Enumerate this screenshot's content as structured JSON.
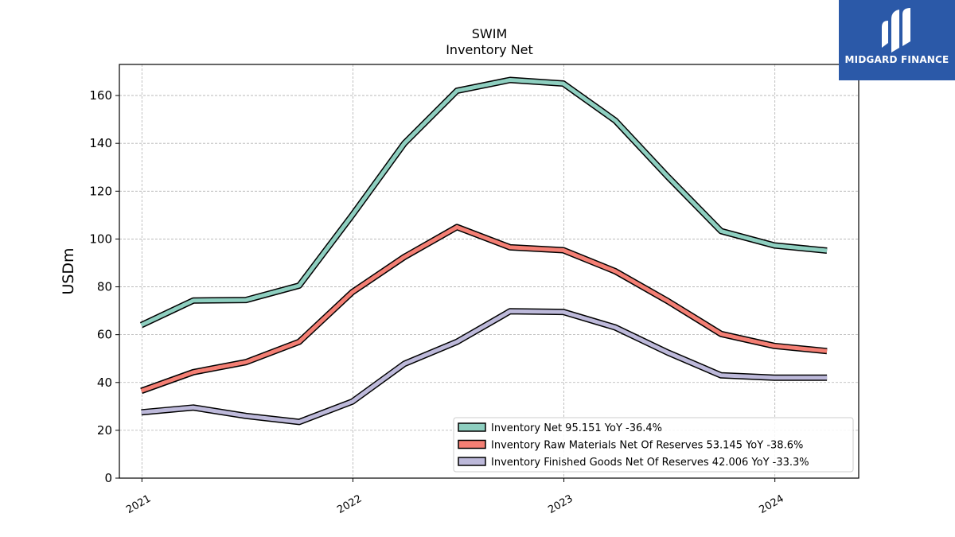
{
  "logo": {
    "text": "MIDGARD FINANCE",
    "bg_color": "#2b59a8"
  },
  "chart_data": {
    "type": "line",
    "title": "SWIM",
    "subtitle": "Inventory Net",
    "ylabel": "USDm",
    "xlabel": "",
    "ylim": [
      0,
      173
    ],
    "yticks": [
      0,
      20,
      40,
      60,
      80,
      100,
      120,
      140,
      160
    ],
    "xlim": [
      "2020-11-23",
      "2024-05-25"
    ],
    "xticks": [
      {
        "date": "2021-01-01",
        "label": "2021"
      },
      {
        "date": "2022-01-01",
        "label": "2022"
      },
      {
        "date": "2023-01-01",
        "label": "2023"
      },
      {
        "date": "2024-01-01",
        "label": "2024"
      }
    ],
    "grid": true,
    "legend_position": "lower-right",
    "x": [
      "2020-12-31",
      "2021-03-31",
      "2021-06-30",
      "2021-09-30",
      "2021-12-31",
      "2022-03-31",
      "2022-06-30",
      "2022-09-30",
      "2022-12-31",
      "2023-03-31",
      "2023-06-30",
      "2023-09-30",
      "2023-12-31",
      "2024-03-31"
    ],
    "series": [
      {
        "name": "Inventory Net",
        "legend_label": "Inventory Net  95.151 YoY -36.4%",
        "color": "#8ecfc0",
        "values": [
          64,
          74.3,
          74.5,
          80.5,
          110,
          140,
          162,
          166.5,
          165,
          149.5,
          126,
          103.3,
          97.3,
          95.151
        ]
      },
      {
        "name": "Inventory Raw Materials Net Of Reserves",
        "legend_label": "Inventory Raw Materials Net Of Reserves  53.145 YoY -38.6%",
        "color": "#f47f74",
        "values": [
          36.5,
          44.3,
          48.5,
          57,
          77.8,
          92.5,
          105,
          96.5,
          95.3,
          86.5,
          74,
          60.3,
          55.3,
          53.145
        ]
      },
      {
        "name": "Inventory Finished Goods Net Of Reserves",
        "legend_label": "Inventory Finished Goods Net Of Reserves  42.006 YoY -33.3%",
        "color": "#bdb9da",
        "values": [
          27.5,
          29.5,
          26,
          23.5,
          32,
          47.8,
          57,
          69.8,
          69.5,
          63,
          52.5,
          43,
          42,
          42.006
        ]
      }
    ]
  }
}
